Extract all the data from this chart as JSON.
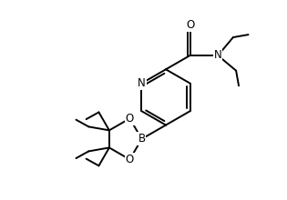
{
  "bg_color": "#ffffff",
  "line_color": "#000000",
  "line_width": 1.4,
  "font_size": 8.5,
  "figsize": [
    3.15,
    2.2
  ],
  "dpi": 100,
  "xlim": [
    0,
    10
  ],
  "ylim": [
    0,
    7
  ]
}
